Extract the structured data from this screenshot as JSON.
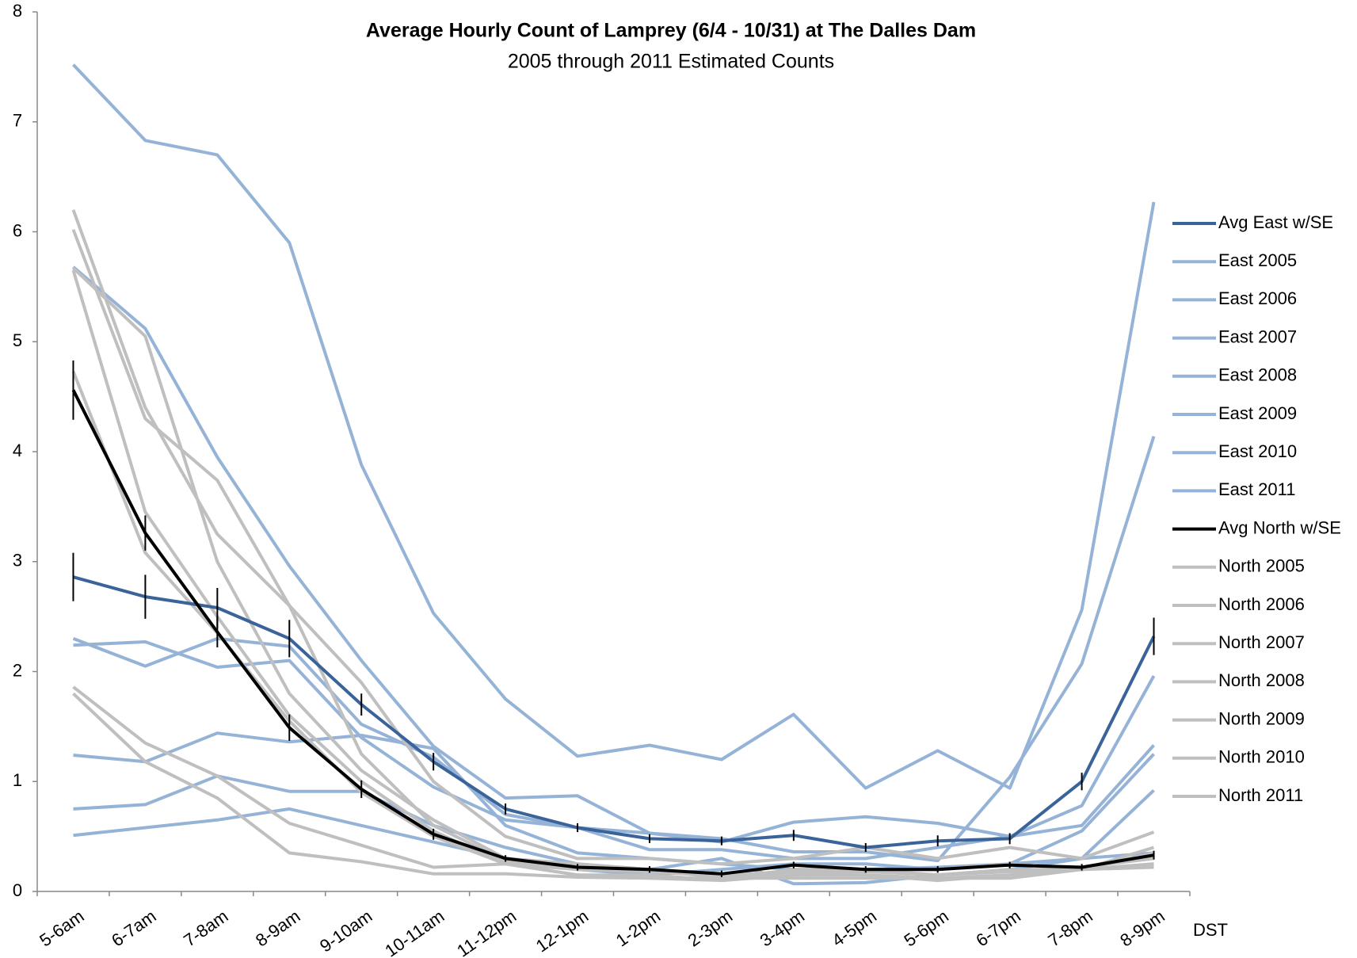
{
  "chart_data": {
    "type": "line",
    "title": "Average Hourly Count of Lamprey (6/4 - 10/31) at The Dalles Dam",
    "subtitle": "2005 through 2011 Estimated Counts",
    "x_label": "DST",
    "categories": [
      "5-6am",
      "6-7am",
      "7-8am",
      "8-9am",
      "9-10am",
      "10-11am",
      "11-12pm",
      "12-1pm",
      "1-2pm",
      "2-3pm",
      "3-4pm",
      "4-5pm",
      "5-6pm",
      "6-7pm",
      "7-8pm",
      "8-9pm"
    ],
    "ylim": [
      0,
      8
    ],
    "yticks": [
      0,
      1,
      2,
      3,
      4,
      5,
      6,
      7,
      8
    ],
    "series": [
      {
        "name": "Avg East w/SE",
        "color": "#3a639a",
        "values": [
          2.86,
          2.68,
          2.58,
          2.3,
          1.7,
          1.18,
          0.75,
          0.58,
          0.48,
          0.46,
          0.51,
          0.4,
          0.46,
          0.48,
          1.0,
          2.32
        ],
        "errors": [
          0.22,
          0.2,
          0.18,
          0.17,
          0.1,
          0.08,
          0.05,
          0.04,
          0.04,
          0.04,
          0.05,
          0.04,
          0.05,
          0.05,
          0.08,
          0.17
        ]
      },
      {
        "name": "East 2005",
        "color": "#95b3d7",
        "values": [
          7.52,
          6.83,
          6.7,
          5.9,
          3.88,
          2.53,
          1.75,
          1.23,
          1.33,
          1.2,
          1.61,
          0.94,
          1.28,
          0.94,
          2.56,
          6.27
        ]
      },
      {
        "name": "East 2006",
        "color": "#95b3d7",
        "values": [
          5.68,
          5.12,
          3.95,
          2.96,
          2.1,
          1.32,
          0.85,
          0.87,
          0.53,
          0.48,
          0.36,
          0.36,
          0.28,
          1.04,
          2.07,
          4.14
        ]
      },
      {
        "name": "East 2007",
        "color": "#95b3d7",
        "values": [
          2.3,
          2.05,
          2.3,
          2.23,
          1.52,
          1.22,
          0.7,
          0.58,
          0.53,
          0.45,
          0.63,
          0.68,
          0.62,
          0.5,
          0.78,
          1.96
        ]
      },
      {
        "name": "East 2008",
        "color": "#95b3d7",
        "values": [
          2.24,
          2.27,
          2.04,
          2.1,
          1.4,
          0.95,
          0.65,
          0.58,
          0.38,
          0.38,
          0.3,
          0.3,
          0.4,
          0.5,
          0.6,
          1.33
        ]
      },
      {
        "name": "East 2009",
        "color": "#95b3d7",
        "values": [
          1.24,
          1.18,
          1.44,
          1.36,
          1.42,
          1.3,
          0.6,
          0.35,
          0.3,
          0.25,
          0.2,
          0.2,
          0.22,
          0.25,
          0.55,
          1.25
        ]
      },
      {
        "name": "East 2010",
        "color": "#95b3d7",
        "values": [
          0.75,
          0.79,
          1.05,
          0.91,
          0.91,
          0.6,
          0.4,
          0.25,
          0.2,
          0.3,
          0.07,
          0.08,
          0.15,
          0.2,
          0.3,
          0.92
        ]
      },
      {
        "name": "East 2011",
        "color": "#95b3d7",
        "values": [
          0.51,
          0.58,
          0.65,
          0.75,
          0.6,
          0.45,
          0.3,
          0.2,
          0.15,
          0.2,
          0.25,
          0.25,
          0.2,
          0.25,
          0.3,
          0.35
        ]
      },
      {
        "name": "Avg North w/SE",
        "color": "#000000",
        "values": [
          4.56,
          3.26,
          2.36,
          1.49,
          0.93,
          0.52,
          0.3,
          0.22,
          0.2,
          0.16,
          0.24,
          0.2,
          0.2,
          0.24,
          0.22,
          0.33
        ],
        "errors": [
          0.27,
          0.16,
          0.14,
          0.12,
          0.08,
          0.05,
          0.03,
          0.03,
          0.03,
          0.03,
          0.03,
          0.03,
          0.03,
          0.03,
          0.03,
          0.04
        ]
      },
      {
        "name": "North 2005",
        "color": "#bfbfbf",
        "values": [
          6.2,
          4.4,
          3.25,
          2.6,
          1.9,
          1.0,
          0.5,
          0.3,
          0.3,
          0.25,
          0.3,
          0.4,
          0.3,
          0.4,
          0.3,
          0.54
        ]
      },
      {
        "name": "North 2006",
        "color": "#bfbfbf",
        "values": [
          6.02,
          4.3,
          3.74,
          2.6,
          1.25,
          0.6,
          0.28,
          0.2,
          0.2,
          0.15,
          0.18,
          0.2,
          0.15,
          0.2,
          0.2,
          0.4
        ]
      },
      {
        "name": "North 2007",
        "color": "#bfbfbf",
        "values": [
          5.67,
          5.05,
          3.0,
          1.8,
          1.1,
          0.65,
          0.3,
          0.25,
          0.2,
          0.12,
          0.2,
          0.2,
          0.2,
          0.25,
          0.2,
          0.35
        ]
      },
      {
        "name": "North 2008",
        "color": "#bfbfbf",
        "values": [
          5.65,
          3.45,
          2.5,
          1.6,
          1.0,
          0.55,
          0.25,
          0.15,
          0.15,
          0.1,
          0.15,
          0.15,
          0.12,
          0.15,
          0.22,
          0.3
        ]
      },
      {
        "name": "North 2009",
        "color": "#bfbfbf",
        "values": [
          4.73,
          3.08,
          2.35,
          1.55,
          0.9,
          0.5,
          0.25,
          0.15,
          0.12,
          0.1,
          0.15,
          0.15,
          0.1,
          0.15,
          0.2,
          0.25
        ]
      },
      {
        "name": "North 2010",
        "color": "#bfbfbf",
        "values": [
          1.86,
          1.35,
          1.05,
          0.62,
          0.42,
          0.22,
          0.25,
          0.2,
          0.18,
          0.14,
          0.16,
          0.18,
          0.15,
          0.18,
          0.2,
          0.25
        ]
      },
      {
        "name": "North 2011",
        "color": "#bfbfbf",
        "values": [
          1.8,
          1.18,
          0.85,
          0.35,
          0.27,
          0.16,
          0.16,
          0.13,
          0.12,
          0.12,
          0.12,
          0.12,
          0.12,
          0.12,
          0.2,
          0.22
        ]
      }
    ]
  }
}
